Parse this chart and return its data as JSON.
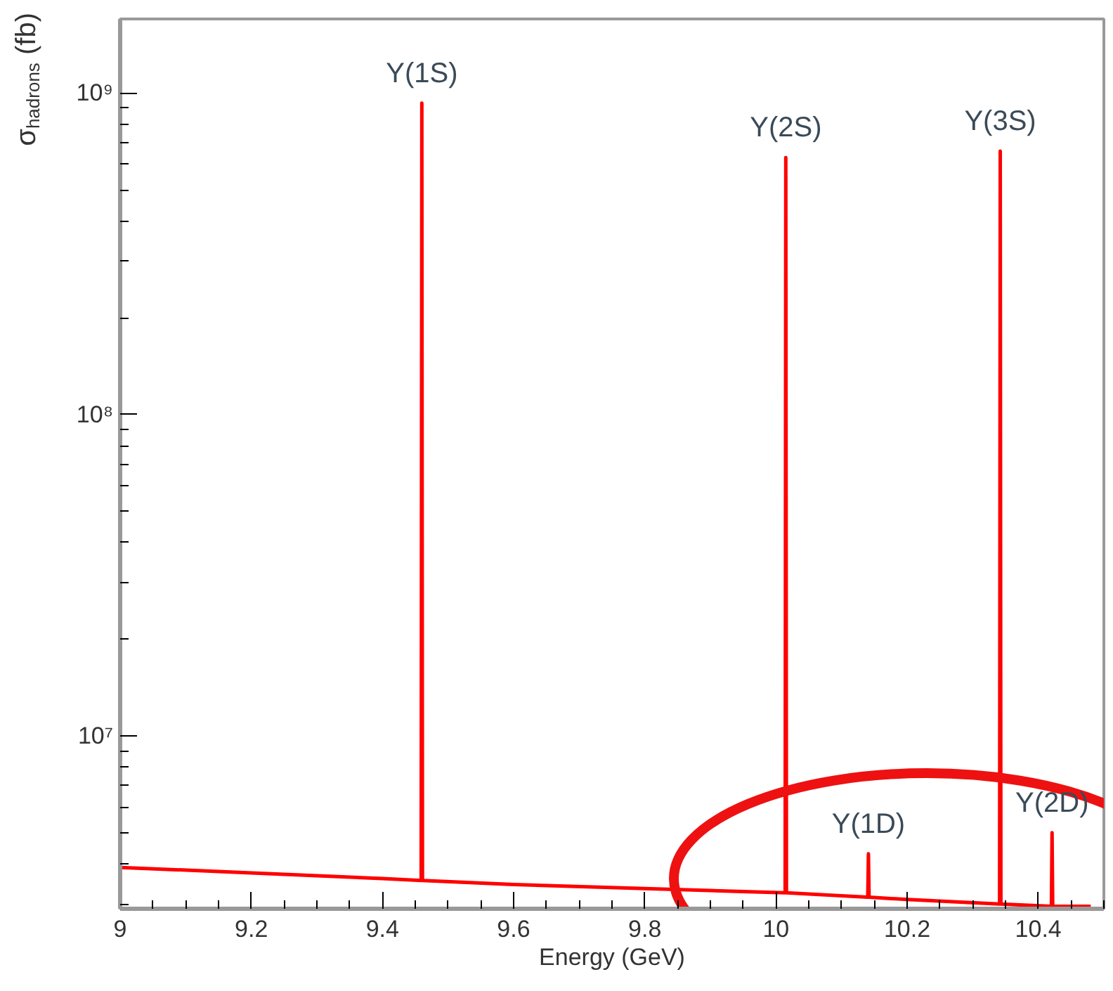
{
  "chart_data": {
    "type": "line",
    "xlabel": "Energy (GeV)",
    "ylabel": "σ$_{hadrons}$ (fb)",
    "log": "y",
    "grid": false,
    "marker": "none",
    "line_style": "solid",
    "xlim": [
      9,
      10.5
    ],
    "xticks": [
      9,
      9.2,
      9.4,
      9.6,
      9.8,
      10,
      10.2,
      10.4
    ],
    "ylim": [
      2900000,
      1700000000
    ],
    "yticks": [
      {
        "value": 10000000,
        "label": "10⁷"
      },
      {
        "value": 100000000,
        "label": "10⁸"
      },
      {
        "value": 1000000000,
        "label": "10⁹"
      }
    ],
    "x": [
      9,
      9.2,
      9.4,
      9.459,
      9.46,
      9.461,
      9.6,
      9.8,
      10.014,
      10.015,
      10.016,
      10.14,
      10.141,
      10.142,
      10.2,
      10.341,
      10.342,
      10.343,
      10.42,
      10.421,
      10.422,
      10.48
    ],
    "series": [
      {
        "color": "#ff0000",
        "values": [
          3900000,
          3750000,
          3600000,
          3550000,
          930000000,
          3550000,
          3450000,
          3350000,
          3250000,
          630000000,
          3250000,
          3150000,
          4300000,
          3150000,
          3100000,
          3000000,
          660000000,
          3000000,
          2950000,
          5000000,
          2950000,
          2950000
        ]
      }
    ],
    "annotations": [
      "Υ(1S)",
      "Υ(2S)",
      "Υ(1D)",
      "Υ(3S)",
      "Υ(2D)"
    ]
  }
}
